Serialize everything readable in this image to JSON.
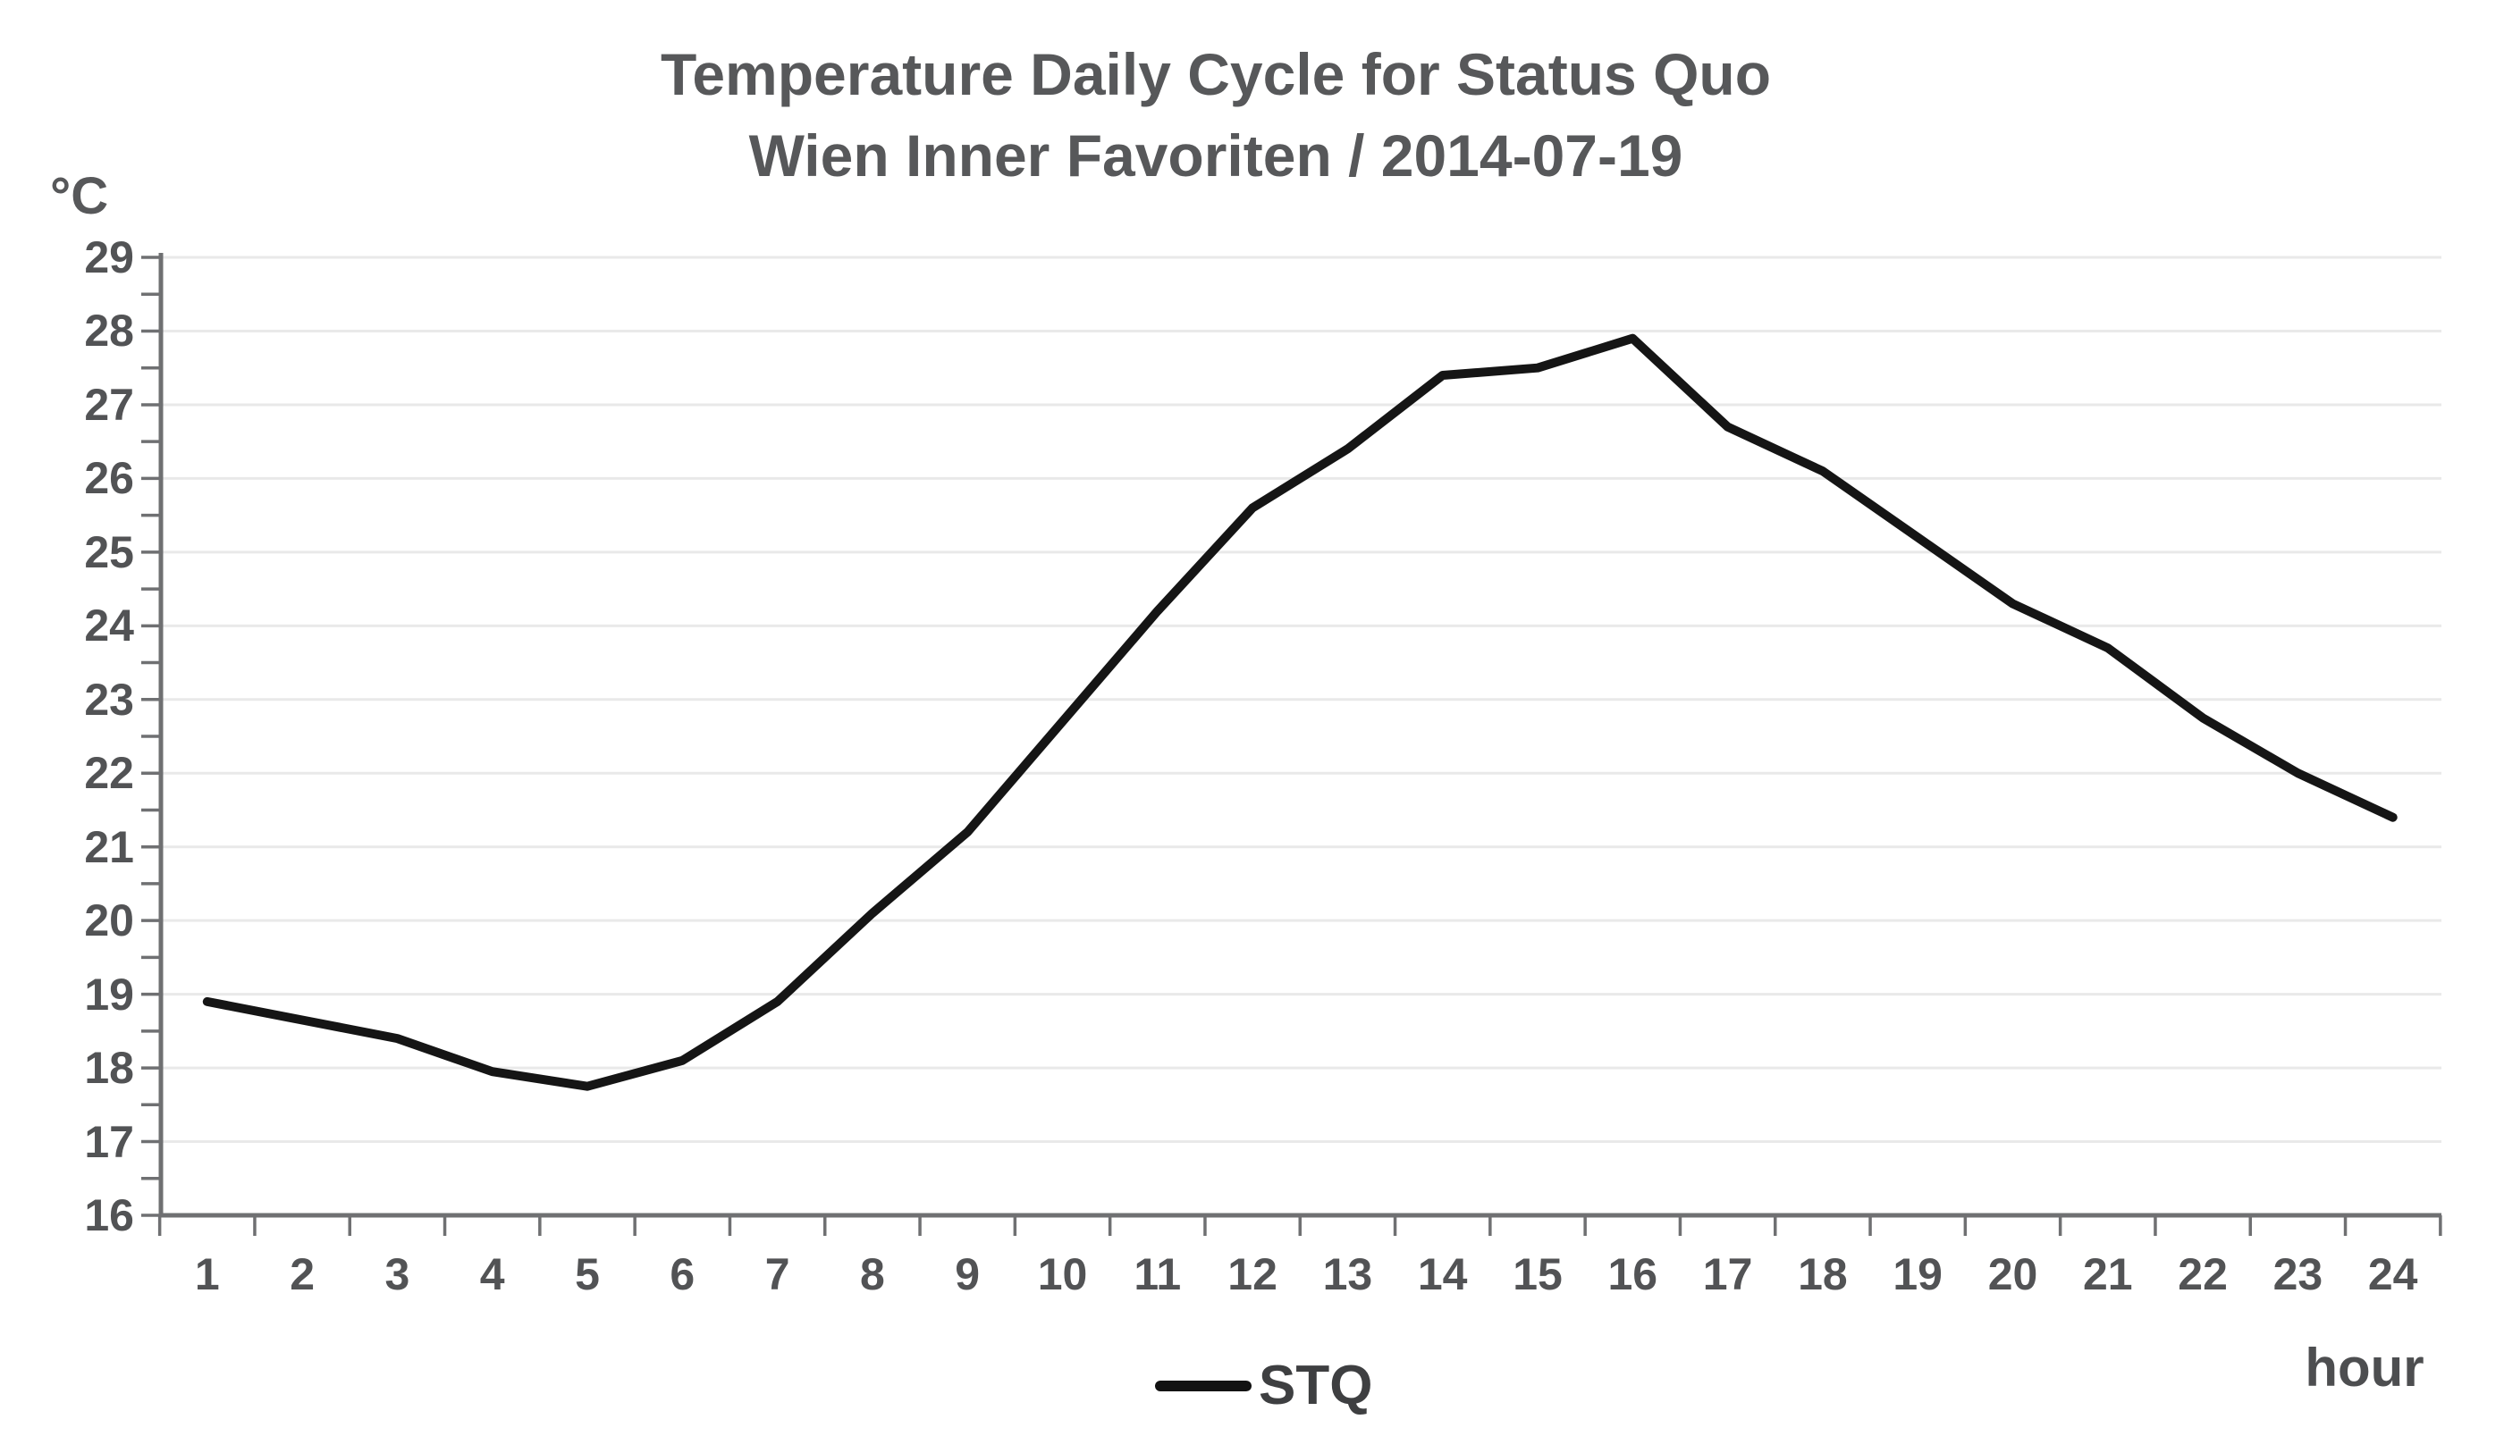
{
  "title": {
    "line1": "Temperature Daily Cycle for Status Quo",
    "line2": "Wien Inner Favoriten / 2014-07-19"
  },
  "axes": {
    "y_unit": "°C",
    "x_unit": "hour"
  },
  "legend": {
    "series_label": "STQ"
  },
  "colors": {
    "series_line": "#151515",
    "gridline": "#e9e9e9",
    "axis": "#6f7072",
    "text": "#57585a"
  },
  "chart_data": {
    "type": "line",
    "title": "Temperature Daily Cycle for Status Quo",
    "subtitle": "Wien Inner Favoriten / 2014-07-19",
    "xlabel": "hour",
    "ylabel": "°C",
    "x": [
      1,
      2,
      3,
      4,
      5,
      6,
      7,
      8,
      9,
      10,
      11,
      12,
      13,
      14,
      15,
      16,
      17,
      18,
      19,
      20,
      21,
      22,
      23,
      24
    ],
    "series": [
      {
        "name": "STQ",
        "values": [
          18.9,
          18.65,
          18.4,
          17.95,
          17.75,
          18.1,
          18.9,
          20.1,
          21.2,
          22.7,
          24.2,
          25.6,
          26.4,
          27.4,
          27.5,
          27.9,
          26.7,
          26.1,
          25.2,
          24.3,
          23.7,
          22.75,
          22.0,
          21.4
        ]
      }
    ],
    "ylim": [
      16,
      29
    ],
    "y_tick_step": 1,
    "y_minor_tick_step": 0.5,
    "grid": "horizontal-major",
    "legend_position": "bottom-center"
  }
}
